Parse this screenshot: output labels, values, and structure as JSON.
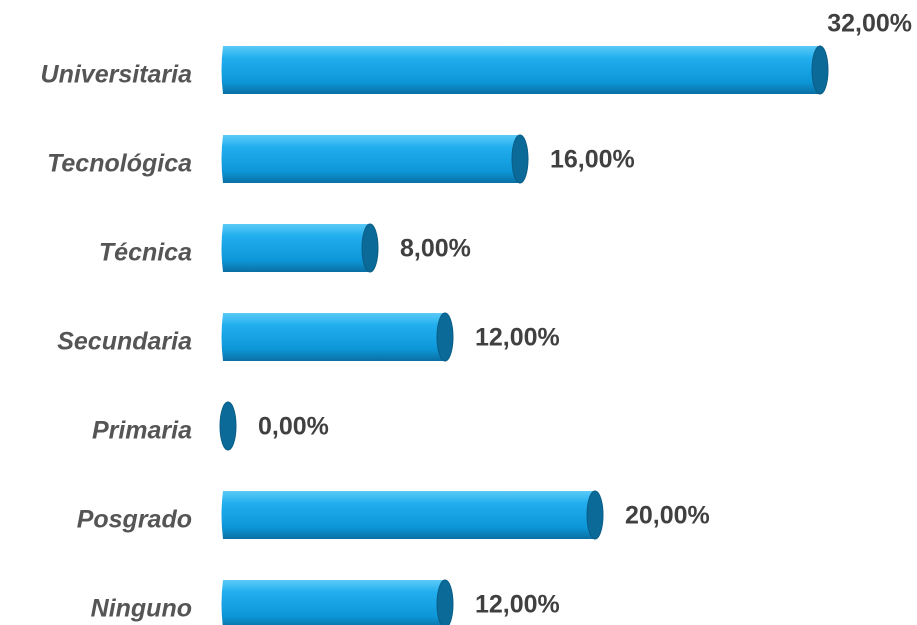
{
  "chart_data": {
    "type": "bar",
    "orientation": "horizontal",
    "categories": [
      "Universitaria",
      "Tecnológica",
      "Técnica",
      "Secundaria",
      "Primaria",
      "Posgrado",
      "Ninguno"
    ],
    "values": [
      32,
      16,
      8,
      12,
      0,
      20,
      12
    ],
    "value_labels": [
      "32,00%",
      "16,00%",
      "8,00%",
      "12,00%",
      "0,00%",
      "20,00%",
      "12,00%"
    ],
    "color": "#12a3e6"
  }
}
